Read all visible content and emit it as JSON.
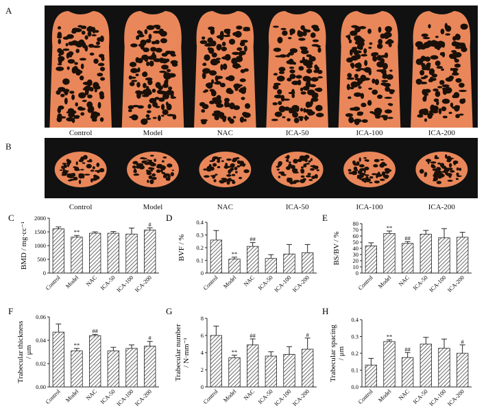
{
  "panel_a": {
    "letter": "A",
    "groups": [
      "Control",
      "Model",
      "NAC",
      "ICA-50",
      "ICA-100",
      "ICA-200"
    ],
    "bone_color": "#e9875a",
    "background_color": "#111111"
  },
  "panel_b": {
    "letter": "B",
    "groups": [
      "Control",
      "Model",
      "NAC",
      "ICA-50",
      "ICA-100",
      "ICA-200"
    ],
    "bone_color": "#e9875a",
    "background_color": "#111111"
  },
  "chart_data": [
    {
      "panel": "C",
      "type": "bar",
      "ylabel": "BMD / mg·cc⁻¹",
      "categories": [
        "Control",
        "Model",
        "NAC",
        "ICA-50",
        "ICA-100",
        "ICA-200"
      ],
      "values": [
        1610,
        1310,
        1450,
        1450,
        1420,
        1570
      ],
      "errors": [
        70,
        60,
        50,
        60,
        220,
        80
      ],
      "marks": [
        "",
        "**",
        "",
        "",
        "",
        "#"
      ],
      "ylim": [
        0,
        2000
      ],
      "yticks": [
        "0",
        "500",
        "1000",
        "1500",
        "2000"
      ]
    },
    {
      "panel": "D",
      "type": "bar",
      "ylabel": "BVF / %",
      "categories": [
        "Control",
        "Model",
        "NAC",
        "ICA-50",
        "ICA-100",
        "ICA-200"
      ],
      "values": [
        0.26,
        0.11,
        0.21,
        0.115,
        0.15,
        0.16
      ],
      "errors": [
        0.075,
        0.015,
        0.03,
        0.03,
        0.075,
        0.065
      ],
      "marks": [
        "",
        "**",
        "##",
        "",
        "",
        ""
      ],
      "ylim": [
        0,
        0.4
      ],
      "yticks": [
        "0",
        "0.1",
        "0.2",
        "0.3",
        "0.4"
      ]
    },
    {
      "panel": "E",
      "type": "bar",
      "ylabel": "BS/BV / %",
      "categories": [
        "Control",
        "Model",
        "NAC",
        "ICA-50",
        "ICA-100",
        "ICA-200"
      ],
      "values": [
        44,
        64,
        48,
        63,
        57,
        58
      ],
      "errors": [
        5,
        4,
        3,
        6,
        15,
        8
      ],
      "marks": [
        "",
        "**",
        "##",
        "",
        "",
        ""
      ],
      "ylim": [
        0,
        80
      ],
      "yticks": [
        "0",
        "10",
        "20",
        "30",
        "40",
        "50",
        "60",
        "70",
        "80"
      ]
    },
    {
      "panel": "F",
      "type": "bar",
      "ylabel": "Trabecular thickness / μm",
      "categories": [
        "Control",
        "Model",
        "NAC",
        "ICA-50",
        "ICA-100",
        "ICA-200"
      ],
      "values": [
        0.047,
        0.031,
        0.044,
        0.031,
        0.033,
        0.035
      ],
      "errors": [
        0.007,
        0.002,
        0.001,
        0.003,
        0.003,
        0.004
      ],
      "marks": [
        "",
        "**",
        "##",
        "",
        "",
        "#"
      ],
      "ylim": [
        0,
        0.06
      ],
      "yticks": [
        "0.00",
        "0.02",
        "0.04",
        "0.06"
      ]
    },
    {
      "panel": "G",
      "type": "bar",
      "ylabel": "Trabecular number / N·mm⁻¹",
      "categories": [
        "Control",
        "Model",
        "NAC",
        "ICA-50",
        "ICA-100",
        "ICA-200"
      ],
      "values": [
        6.0,
        3.4,
        4.9,
        3.6,
        3.8,
        4.4
      ],
      "errors": [
        1.1,
        0.3,
        0.7,
        0.5,
        0.9,
        1.3
      ],
      "marks": [
        "",
        "**",
        "##",
        "",
        "",
        "#"
      ],
      "ylim": [
        0,
        8
      ],
      "yticks": [
        "0",
        "2",
        "4",
        "6",
        "8"
      ]
    },
    {
      "panel": "H",
      "type": "bar",
      "ylabel": "Trabecular spacing / μm",
      "categories": [
        "Control",
        "Model",
        "NAC",
        "ICA-50",
        "ICA-100",
        "ICA-200"
      ],
      "values": [
        0.13,
        0.27,
        0.175,
        0.255,
        0.23,
        0.2
      ],
      "errors": [
        0.04,
        0.01,
        0.03,
        0.04,
        0.055,
        0.05
      ],
      "marks": [
        "",
        "**",
        "##",
        "",
        "",
        "#"
      ],
      "ylim": [
        0,
        0.4
      ],
      "yticks": [
        "0.0",
        "0.1",
        "0.2",
        "0.3",
        "0.4"
      ]
    }
  ]
}
